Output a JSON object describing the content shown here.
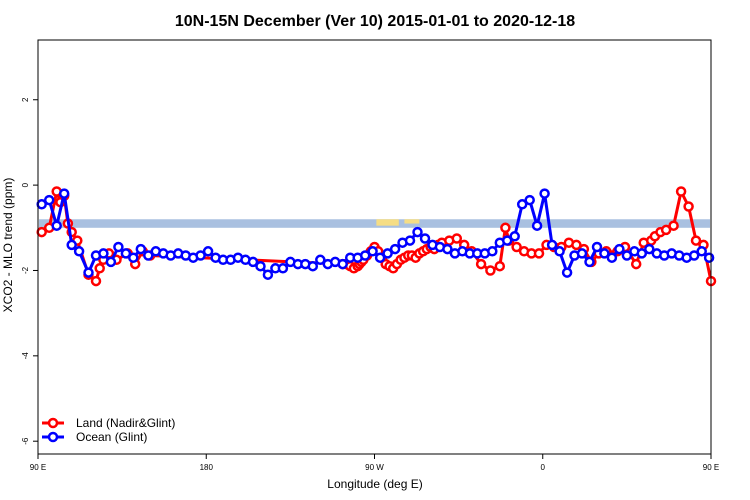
{
  "chart_data": {
    "type": "line",
    "title": "10N-15N December (Ver 10)   2015-01-01 to 2020-12-18",
    "xlabel": "Longitude (deg E)",
    "ylabel": "XCO2 - MLO trend (ppm)",
    "xlim": [
      90,
      450
    ],
    "ylim": [
      -6.3,
      3.4
    ],
    "grid": false,
    "legend_position": "bottom-left",
    "x_ticks": [
      {
        "value": 90,
        "label": "90 E"
      },
      {
        "value": 180,
        "label": "180"
      },
      {
        "value": 270,
        "label": "90 W"
      },
      {
        "value": 360,
        "label": "0"
      },
      {
        "value": 450,
        "label": "90 E"
      },
      {
        "value": 540,
        "label": "180"
      }
    ],
    "y_ticks": [
      {
        "value": 2,
        "label": "2"
      },
      {
        "value": 0,
        "label": "0"
      },
      {
        "value": -2,
        "label": "-2"
      },
      {
        "value": -4,
        "label": "-4"
      },
      {
        "value": -6,
        "label": "-6"
      }
    ],
    "latitude_band": {
      "y_top": -0.8,
      "y_bottom": -1.0,
      "color": "#a9c0e0",
      "land_color": "#f5dd85"
    },
    "land_segments": [
      {
        "x_start": 121,
        "x_end": 123,
        "y_bottom": -0.75
      },
      {
        "x_start": 271,
        "x_end": 283,
        "y_bottom": -0.95
      },
      {
        "x_start": 286,
        "x_end": 294,
        "y_bottom": -0.9
      },
      {
        "x_start": 341,
        "x_end": 393,
        "y_bottom": -0.78
      },
      {
        "x_start": 407,
        "x_end": 415,
        "y_bottom": -0.75
      },
      {
        "x_start": 481,
        "x_end": 483,
        "y_bottom": -0.75
      }
    ],
    "series": [
      {
        "name": "Land (Nadir&Glint)",
        "color": "#ff0000",
        "x": [
          92,
          96,
          100,
          102,
          104,
          106,
          108,
          111,
          117,
          121,
          123,
          125,
          128,
          132,
          138,
          142,
          146,
          150,
          253,
          255,
          257,
          259,
          261,
          262,
          263,
          264,
          266,
          268,
          270,
          272,
          274,
          276,
          278,
          280,
          282,
          284,
          286,
          288,
          290,
          292,
          294,
          296,
          298,
          300,
          302,
          304,
          306,
          310,
          314,
          318,
          322,
          327,
          332,
          337,
          340,
          342,
          346,
          350,
          354,
          358,
          362,
          366,
          370,
          374,
          378,
          382,
          386,
          390,
          394,
          397,
          400,
          404,
          410,
          414,
          418,
          420,
          423,
          426,
          430,
          434,
          438,
          442,
          446,
          450
        ],
        "values": [
          -1.1,
          -1.0,
          -0.15,
          -0.4,
          -0.25,
          -0.9,
          -1.1,
          -1.3,
          -2.1,
          -2.25,
          -1.95,
          -1.75,
          -1.6,
          -1.75,
          -1.6,
          -1.85,
          -1.55,
          -1.65,
          -1.85,
          -1.85,
          -1.9,
          -1.95,
          -1.9,
          -1.85,
          -1.8,
          -1.75,
          -1.65,
          -1.55,
          -1.45,
          -1.55,
          -1.7,
          -1.85,
          -1.9,
          -1.95,
          -1.85,
          -1.75,
          -1.7,
          -1.65,
          -1.65,
          -1.7,
          -1.6,
          -1.55,
          -1.5,
          -1.45,
          -1.5,
          -1.4,
          -1.35,
          -1.3,
          -1.25,
          -1.4,
          -1.55,
          -1.85,
          -2.0,
          -1.9,
          -1.0,
          -1.3,
          -1.45,
          -1.55,
          -1.6,
          -1.6,
          -1.4,
          -1.45,
          -1.45,
          -1.35,
          -1.4,
          -1.5,
          -1.8,
          -1.6,
          -1.55,
          -1.65,
          -1.55,
          -1.45,
          -1.85,
          -1.35,
          -1.3,
          -1.2,
          -1.1,
          -1.05,
          -0.95,
          -0.15,
          -0.5,
          -1.3,
          -1.4,
          -2.25
        ]
      },
      {
        "name": "Ocean (Glint)",
        "color": "#0000ff",
        "x": [
          92,
          96,
          100,
          104,
          108,
          112,
          117,
          121,
          125,
          129,
          133,
          137,
          141,
          145,
          149,
          153,
          157,
          161,
          165,
          169,
          173,
          177,
          181,
          185,
          189,
          193,
          197,
          201,
          205,
          209,
          213,
          217,
          221,
          225,
          229,
          233,
          237,
          241,
          245,
          249,
          253,
          257,
          261,
          265,
          269,
          273,
          277,
          281,
          285,
          289,
          293,
          297,
          301,
          305,
          309,
          313,
          317,
          321,
          325,
          329,
          333,
          337,
          341,
          345,
          349,
          353,
          357,
          361,
          365,
          369,
          373,
          377,
          381,
          385,
          389,
          393,
          397,
          401,
          405,
          409,
          413,
          417,
          421,
          425,
          429,
          433,
          437,
          441,
          445,
          449
        ],
        "values": [
          -0.45,
          -0.35,
          -0.95,
          -0.2,
          -1.4,
          -1.55,
          -2.05,
          -1.65,
          -1.6,
          -1.8,
          -1.45,
          -1.6,
          -1.7,
          -1.5,
          -1.65,
          -1.55,
          -1.6,
          -1.65,
          -1.6,
          -1.65,
          -1.7,
          -1.65,
          -1.55,
          -1.7,
          -1.75,
          -1.75,
          -1.7,
          -1.75,
          -1.8,
          -1.9,
          -2.1,
          -1.95,
          -1.95,
          -1.8,
          -1.85,
          -1.85,
          -1.9,
          -1.75,
          -1.85,
          -1.8,
          -1.85,
          -1.7,
          -1.7,
          -1.65,
          -1.55,
          -1.7,
          -1.6,
          -1.5,
          -1.35,
          -1.3,
          -1.1,
          -1.25,
          -1.4,
          -1.45,
          -1.5,
          -1.6,
          -1.55,
          -1.6,
          -1.6,
          -1.6,
          -1.55,
          -1.35,
          -1.3,
          -1.2,
          -0.45,
          -0.35,
          -0.95,
          -0.2,
          -1.4,
          -1.55,
          -2.05,
          -1.65,
          -1.6,
          -1.8,
          -1.45,
          -1.6,
          -1.7,
          -1.5,
          -1.65,
          -1.55,
          -1.6,
          -1.5,
          -1.6,
          -1.65,
          -1.6,
          -1.65,
          -1.7,
          -1.65,
          -1.55,
          -1.7
        ]
      }
    ]
  }
}
